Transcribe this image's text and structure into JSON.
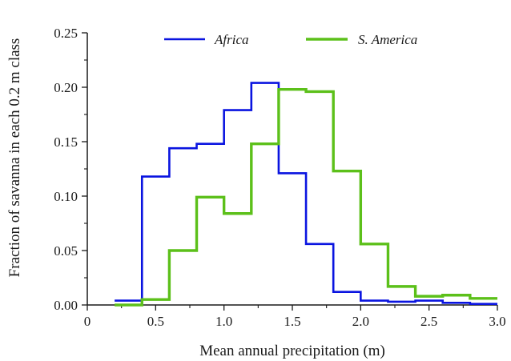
{
  "chart_data": {
    "type": "line",
    "step": true,
    "xlabel": "Mean annual precipitation (m)",
    "ylabel": "Fraction  of savanna in each 0.2 m class",
    "xlim": [
      0,
      3.0
    ],
    "ylim": [
      0,
      0.25
    ],
    "xticks": [
      "0",
      "0.5",
      "1.0",
      "1.5",
      "2.0",
      "2.5",
      "3.0"
    ],
    "yticks": [
      "0.00",
      "0.05",
      "0.10",
      "0.15",
      "0.20",
      "0.25"
    ],
    "bin_edges": [
      0.2,
      0.4,
      0.6,
      0.8,
      1.0,
      1.2,
      1.4,
      1.6,
      1.8,
      2.0,
      2.2,
      2.4,
      2.6,
      2.8,
      3.0
    ],
    "series": [
      {
        "name": "Africa",
        "color": "#0a14e0",
        "values": [
          0.004,
          0.118,
          0.144,
          0.148,
          0.179,
          0.204,
          0.121,
          0.056,
          0.012,
          0.004,
          0.003,
          0.004,
          0.002,
          0.001
        ]
      },
      {
        "name": "S. America",
        "color": "#5cc01a",
        "values": [
          0.0,
          0.005,
          0.05,
          0.099,
          0.084,
          0.148,
          0.198,
          0.196,
          0.123,
          0.056,
          0.017,
          0.008,
          0.009,
          0.006
        ]
      }
    ],
    "legend_position": "top"
  }
}
